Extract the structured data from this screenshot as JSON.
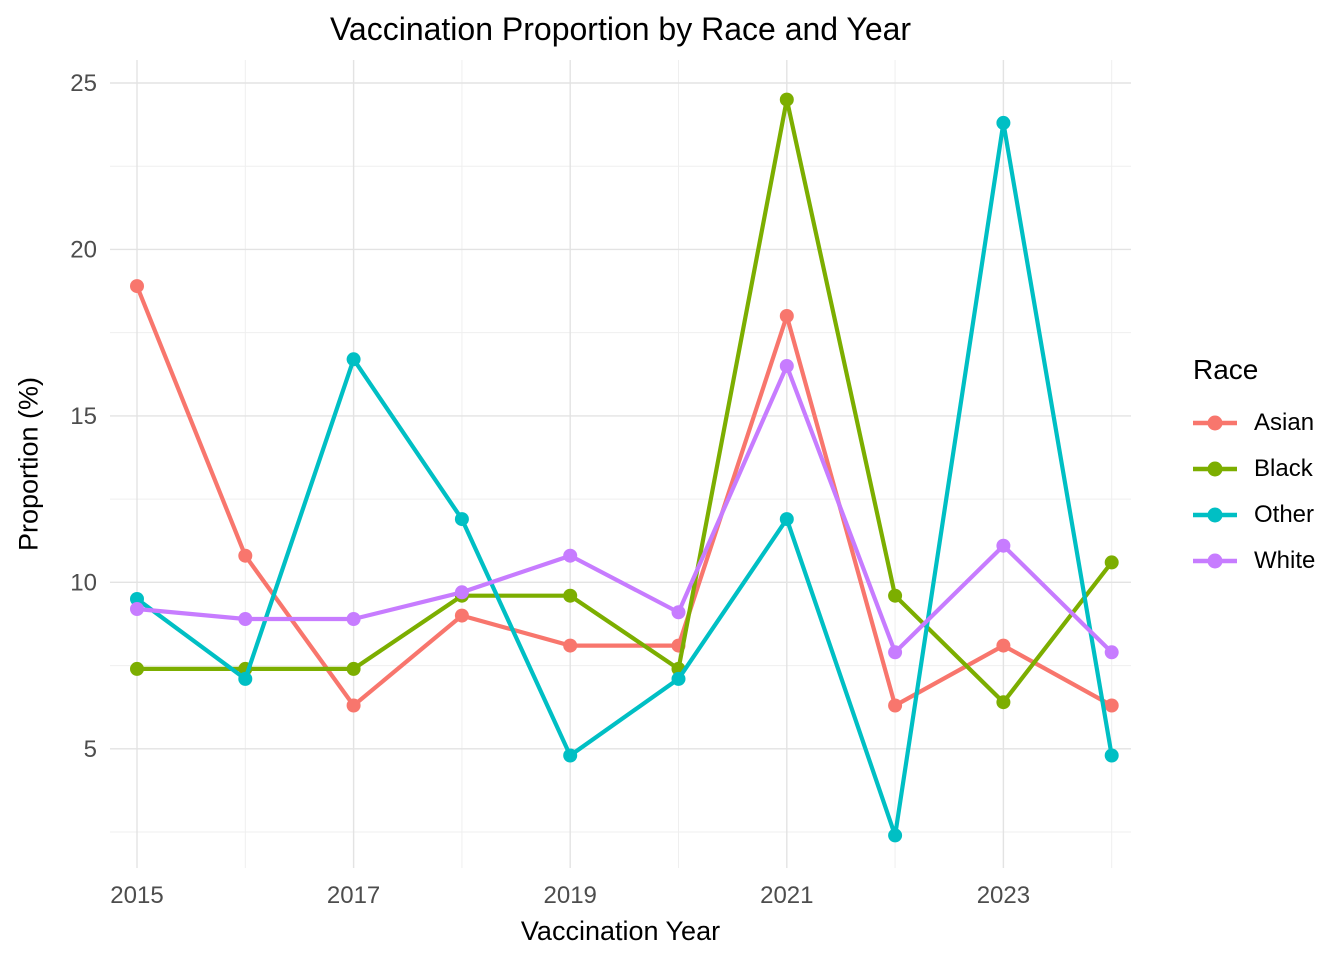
{
  "chart_data": {
    "type": "line",
    "title": "Vaccination Proportion by Race and Year",
    "xlabel": "Vaccination Year",
    "ylabel": "Proportion (%)",
    "legend_title": "Race",
    "legend_position": "right",
    "grid": "major+minor",
    "x": [
      2015,
      2016,
      2017,
      2018,
      2019,
      2020,
      2021,
      2022,
      2023,
      2024
    ],
    "x_major_ticks": [
      2015,
      2017,
      2019,
      2021,
      2023
    ],
    "x_tick_labels": [
      "2015",
      "2017",
      "2019",
      "2021",
      "2023"
    ],
    "y_major_ticks": [
      5,
      10,
      15,
      20,
      25
    ],
    "y_tick_labels": [
      "5",
      "10",
      "15",
      "20",
      "25"
    ],
    "y_minor_ticks": [
      2.5,
      7.5,
      12.5,
      17.5,
      22.5
    ],
    "ylim": [
      1.4,
      25.7
    ],
    "xlim": [
      2014.75,
      2024.18
    ],
    "series": [
      {
        "name": "Asian",
        "color": "#F8766D",
        "values": [
          18.9,
          10.8,
          6.3,
          9.0,
          8.1,
          8.1,
          18.0,
          6.3,
          8.1,
          6.3
        ]
      },
      {
        "name": "Black",
        "color": "#7CAE00",
        "values": [
          7.4,
          7.4,
          7.4,
          9.6,
          9.6,
          7.4,
          24.5,
          9.6,
          6.4,
          10.6
        ]
      },
      {
        "name": "Other",
        "color": "#00BFC4",
        "values": [
          9.5,
          7.1,
          16.7,
          11.9,
          4.8,
          7.1,
          11.9,
          2.4,
          23.8,
          4.8
        ]
      },
      {
        "name": "White",
        "color": "#C77CFF",
        "values": [
          9.2,
          8.9,
          8.9,
          9.7,
          10.8,
          9.1,
          16.5,
          7.9,
          11.1,
          7.9
        ]
      }
    ],
    "colors": {
      "background": "#FFFFFF",
      "grid_major": "#E3E3E3",
      "grid_minor": "#EFEFEF",
      "tick_label": "#4D4D4D",
      "text": "#000000"
    }
  }
}
